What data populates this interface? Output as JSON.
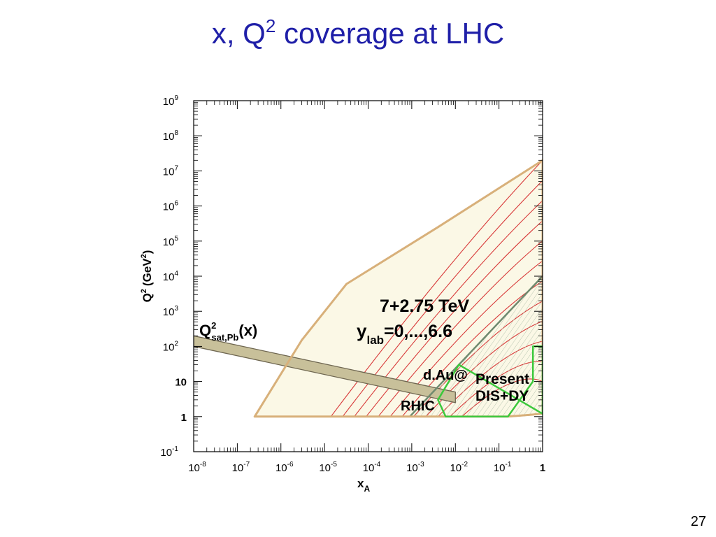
{
  "slide": {
    "title_main": "x, Q",
    "title_sup": "2",
    "title_rest": " coverage at LHC",
    "page_number": "27"
  },
  "chart_data": {
    "type": "area",
    "xlabel": "x",
    "xlabel_sub": "A",
    "ylabel": "Q",
    "ylabel_sup": "2",
    "ylabel_unit": "(GeV",
    "ylabel_unit_sup": "2",
    "ylabel_unit_close": ")",
    "x_scale": "log",
    "y_scale": "log",
    "xlim": [
      1e-08,
      1
    ],
    "ylim": [
      0.1,
      1000000000.0
    ],
    "x_ticks": [
      {
        "value": 1e-08,
        "base": "10",
        "exp": "-8"
      },
      {
        "value": 1e-07,
        "base": "10",
        "exp": "-7"
      },
      {
        "value": 1e-06,
        "base": "10",
        "exp": "-6"
      },
      {
        "value": 1e-05,
        "base": "10",
        "exp": "-5"
      },
      {
        "value": 0.0001,
        "base": "10",
        "exp": "-4"
      },
      {
        "value": 0.001,
        "base": "10",
        "exp": "-3"
      },
      {
        "value": 0.01,
        "base": "10",
        "exp": "-2"
      },
      {
        "value": 0.1,
        "base": "10",
        "exp": "-1"
      },
      {
        "value": 1,
        "base": "1",
        "exp": ""
      }
    ],
    "y_ticks": [
      {
        "value": 1000000000.0,
        "base": "10",
        "exp": "9"
      },
      {
        "value": 100000000.0,
        "base": "10",
        "exp": "8"
      },
      {
        "value": 10000000.0,
        "base": "10",
        "exp": "7"
      },
      {
        "value": 1000000.0,
        "base": "10",
        "exp": "6"
      },
      {
        "value": 100000.0,
        "base": "10",
        "exp": "5"
      },
      {
        "value": 10000.0,
        "base": "10",
        "exp": "4"
      },
      {
        "value": 1000.0,
        "base": "10",
        "exp": "3"
      },
      {
        "value": 100.0,
        "base": "10",
        "exp": "2"
      },
      {
        "value": 10,
        "base": "10",
        "exp": ""
      },
      {
        "value": 1,
        "base": "1",
        "exp": ""
      },
      {
        "value": 0.1,
        "base": "10",
        "exp": "-1"
      }
    ],
    "grid": false,
    "colors": {
      "lhc_region": "#d8b07a",
      "lhc_fill": "#fbf8e6",
      "rapidity_lines": "#d83a3a",
      "rhic_region": "#6f8a6f",
      "dis_region": "#3cc83c",
      "saturation_band": "#c8c09a",
      "saturation_edge": "#6e6650"
    },
    "regions": [
      {
        "name": "LHC",
        "points": [
          [
            2.5e-07,
            1
          ],
          [
            0.16,
            1
          ],
          [
            1,
            1.2
          ],
          [
            1,
            20000000.0
          ],
          [
            0.004,
            250000.0
          ],
          [
            3.2e-05,
            6000
          ],
          [
            3e-06,
            150
          ]
        ]
      },
      {
        "name": "d+Au RHIC",
        "points": [
          [
            0.0009,
            1
          ],
          [
            0.16,
            1
          ],
          [
            1,
            1.2
          ],
          [
            1,
            10000
          ]
        ]
      },
      {
        "name": "DIS+DY",
        "points": [
          [
            0.006,
            1
          ],
          [
            0.16,
            1
          ],
          [
            0.6,
            10
          ],
          [
            0.6,
            100
          ],
          [
            1,
            100
          ],
          [
            1,
            1.2
          ],
          [
            0.012,
            30
          ],
          [
            0.004,
            3
          ]
        ]
      }
    ],
    "rapidity_lines": {
      "values": [
        0,
        0.6,
        1.2,
        1.8,
        2.4,
        3.0,
        3.6,
        4.2,
        4.8,
        5.4,
        6.0,
        6.6
      ],
      "x0": [
        0.014,
        0.0075,
        0.004,
        0.0021,
        0.0011,
        0.0006,
        0.00032,
        0.00017,
        9e-05,
        4.8e-05,
        2.6e-05,
        1.4e-05
      ]
    },
    "saturation_band": {
      "name": "Q²sat,Pb(x)",
      "lower": [
        [
          1e-08,
          100
        ],
        [
          0.01,
          2.5
        ]
      ],
      "upper": [
        [
          1e-08,
          200
        ],
        [
          0.01,
          5
        ]
      ]
    },
    "annotations": {
      "energy": "7+2.75 TeV",
      "ylab_y": "y",
      "ylab_sub": "lab",
      "ylab_range": "=0,...,6.6",
      "qsat_q": "Q",
      "qsat_sup": "2",
      "qsat_sub": "sat,Pb",
      "qsat_arg": "(x)",
      "dau": "d.Au@",
      "rhic": "RHIC",
      "present": "Present",
      "disdy": "DIS+DY"
    }
  }
}
